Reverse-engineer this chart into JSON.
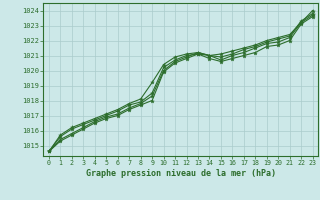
{
  "title": "Graphe pression niveau de la mer (hPa)",
  "bg_color": "#cce8e8",
  "grid_color": "#aacccc",
  "line_color": "#2d6e2d",
  "marker_color": "#2d6e2d",
  "xlim": [
    -0.5,
    23.5
  ],
  "ylim": [
    1014.3,
    1024.5
  ],
  "xticks": [
    0,
    1,
    2,
    3,
    4,
    5,
    6,
    7,
    8,
    9,
    10,
    11,
    12,
    13,
    14,
    15,
    16,
    17,
    18,
    19,
    20,
    21,
    22,
    23
  ],
  "yticks": [
    1015,
    1016,
    1017,
    1018,
    1019,
    1020,
    1021,
    1022,
    1023,
    1024
  ],
  "series": [
    [
      1014.6,
      1015.3,
      1015.7,
      1016.1,
      1016.5,
      1016.8,
      1017.0,
      1017.4,
      1017.7,
      1018.0,
      1019.9,
      1020.5,
      1020.8,
      1021.1,
      1020.8,
      1020.6,
      1020.8,
      1021.0,
      1021.2,
      1021.6,
      1021.7,
      1022.0,
      1023.1,
      1023.6
    ],
    [
      1014.6,
      1015.4,
      1015.8,
      1016.2,
      1016.6,
      1016.9,
      1017.1,
      1017.5,
      1017.8,
      1018.3,
      1020.0,
      1020.6,
      1020.9,
      1021.2,
      1021.0,
      1020.7,
      1021.0,
      1021.2,
      1021.5,
      1021.8,
      1021.9,
      1022.2,
      1023.2,
      1023.7
    ],
    [
      1014.6,
      1015.6,
      1016.1,
      1016.4,
      1016.7,
      1017.0,
      1017.3,
      1017.7,
      1017.9,
      1018.5,
      1020.2,
      1020.7,
      1021.0,
      1021.1,
      1021.0,
      1020.9,
      1021.1,
      1021.4,
      1021.6,
      1021.9,
      1022.1,
      1022.3,
      1023.3,
      1023.8
    ],
    [
      1014.6,
      1015.7,
      1016.2,
      1016.5,
      1016.8,
      1017.1,
      1017.4,
      1017.8,
      1018.1,
      1019.2,
      1020.4,
      1020.9,
      1021.1,
      1021.2,
      1021.0,
      1021.1,
      1021.3,
      1021.5,
      1021.7,
      1022.0,
      1022.2,
      1022.4,
      1023.2,
      1024.0
    ]
  ]
}
